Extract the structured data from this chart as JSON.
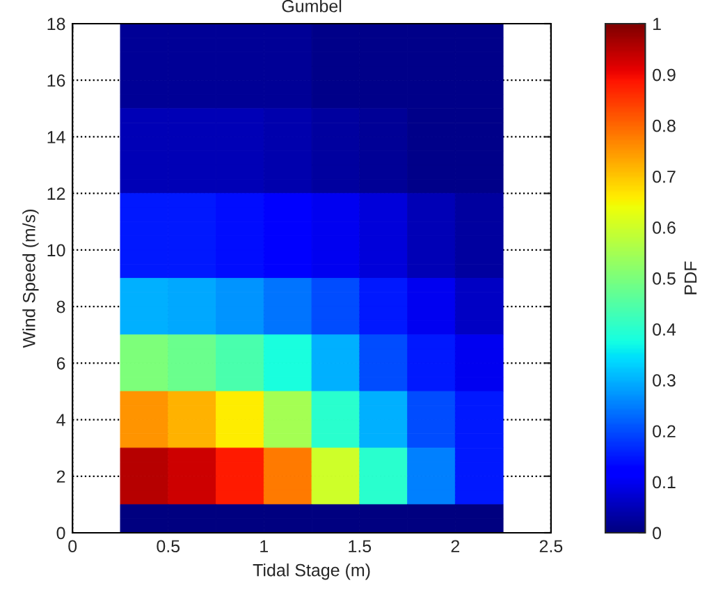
{
  "chart_data": {
    "type": "heatmap",
    "title": "Gumbel",
    "xlabel": "Tidal Stage (m)",
    "ylabel": "Wind Speed (m/s)",
    "clabel": "PDF",
    "cells": [
      [
        null,
        0.02,
        0.02,
        0.02,
        0.02,
        0.01,
        0.01,
        0.01,
        0.01,
        null
      ],
      [
        null,
        0.02,
        0.02,
        0.02,
        0.02,
        0.01,
        0.01,
        0.01,
        0.01,
        null
      ],
      [
        null,
        0.02,
        0.02,
        0.02,
        0.02,
        0.01,
        0.01,
        0.01,
        0.01,
        null
      ],
      [
        null,
        0.02,
        0.02,
        0.02,
        0.02,
        0.01,
        0.01,
        0.01,
        0.01,
        null
      ],
      [
        null,
        0.02,
        0.02,
        0.02,
        0.02,
        0.01,
        0.01,
        0.01,
        0.01,
        null
      ],
      [
        null,
        0.02,
        0.02,
        0.02,
        0.02,
        0.01,
        0.01,
        0.01,
        0.01,
        null
      ],
      [
        null,
        0.05,
        0.05,
        0.05,
        0.04,
        0.03,
        0.02,
        0.01,
        0.01,
        null
      ],
      [
        null,
        0.05,
        0.05,
        0.05,
        0.04,
        0.03,
        0.02,
        0.01,
        0.01,
        null
      ],
      [
        null,
        0.05,
        0.05,
        0.05,
        0.04,
        0.03,
        0.02,
        0.01,
        0.01,
        null
      ],
      [
        null,
        0.05,
        0.05,
        0.05,
        0.04,
        0.03,
        0.02,
        0.01,
        0.01,
        null
      ],
      [
        null,
        0.05,
        0.05,
        0.05,
        0.04,
        0.03,
        0.02,
        0.01,
        0.01,
        null
      ],
      [
        null,
        0.05,
        0.05,
        0.05,
        0.04,
        0.03,
        0.02,
        0.01,
        0.01,
        null
      ],
      [
        null,
        0.15,
        0.15,
        0.14,
        0.12,
        0.1,
        0.08,
        0.05,
        0.03,
        null
      ],
      [
        null,
        0.15,
        0.15,
        0.14,
        0.12,
        0.1,
        0.08,
        0.05,
        0.03,
        null
      ],
      [
        null,
        0.15,
        0.15,
        0.14,
        0.12,
        0.1,
        0.08,
        0.05,
        0.03,
        null
      ],
      [
        null,
        0.15,
        0.15,
        0.14,
        0.12,
        0.1,
        0.08,
        0.05,
        0.03,
        null
      ],
      [
        null,
        0.15,
        0.15,
        0.14,
        0.12,
        0.1,
        0.08,
        0.05,
        0.03,
        null
      ],
      [
        null,
        0.15,
        0.15,
        0.14,
        0.12,
        0.1,
        0.08,
        0.05,
        0.03,
        null
      ],
      [
        null,
        0.3,
        0.29,
        0.27,
        0.24,
        0.2,
        0.15,
        0.1,
        0.06,
        null
      ],
      [
        null,
        0.3,
        0.29,
        0.27,
        0.24,
        0.2,
        0.15,
        0.1,
        0.06,
        null
      ],
      [
        null,
        0.3,
        0.29,
        0.27,
        0.24,
        0.2,
        0.15,
        0.1,
        0.06,
        null
      ],
      [
        null,
        0.3,
        0.29,
        0.27,
        0.24,
        0.2,
        0.15,
        0.1,
        0.06,
        null
      ],
      [
        null,
        0.5,
        0.48,
        0.44,
        0.38,
        0.3,
        0.2,
        0.15,
        0.1,
        null
      ],
      [
        null,
        0.5,
        0.48,
        0.44,
        0.38,
        0.3,
        0.2,
        0.15,
        0.1,
        null
      ],
      [
        null,
        0.5,
        0.48,
        0.44,
        0.38,
        0.3,
        0.2,
        0.15,
        0.1,
        null
      ],
      [
        null,
        0.5,
        0.48,
        0.44,
        0.38,
        0.3,
        0.2,
        0.15,
        0.1,
        null
      ],
      [
        null,
        0.75,
        0.72,
        0.66,
        0.55,
        0.4,
        0.3,
        0.2,
        0.15,
        null
      ],
      [
        null,
        0.75,
        0.72,
        0.66,
        0.55,
        0.4,
        0.3,
        0.2,
        0.15,
        null
      ],
      [
        null,
        0.75,
        0.72,
        0.66,
        0.55,
        0.4,
        0.3,
        0.2,
        0.15,
        null
      ],
      [
        null,
        0.75,
        0.72,
        0.66,
        0.55,
        0.4,
        0.3,
        0.2,
        0.15,
        null
      ],
      [
        null,
        0.95,
        0.93,
        0.88,
        0.78,
        0.6,
        0.4,
        0.25,
        0.15,
        null
      ],
      [
        null,
        0.95,
        0.93,
        0.88,
        0.78,
        0.6,
        0.4,
        0.25,
        0.15,
        null
      ],
      [
        null,
        0.95,
        0.93,
        0.88,
        0.78,
        0.6,
        0.4,
        0.25,
        0.15,
        null
      ],
      [
        null,
        0.95,
        0.93,
        0.88,
        0.78,
        0.6,
        0.4,
        0.25,
        0.15,
        null
      ],
      [
        null,
        0,
        0,
        0,
        0,
        0,
        0,
        0,
        0,
        null
      ],
      [
        null,
        0,
        0,
        0,
        0,
        0,
        0,
        0,
        0,
        null
      ]
    ],
    "clim": [
      0,
      1
    ],
    "cticks": [
      0,
      0.1,
      0.2,
      0.3,
      0.4,
      0.5,
      0.6,
      0.7,
      0.8,
      0.9,
      1
    ],
    "xlim": [
      0,
      2.5
    ],
    "xticks": [
      0,
      0.5,
      1,
      1.5,
      2,
      2.5
    ],
    "ylim": [
      0,
      18
    ],
    "yticks": [
      0,
      2,
      4,
      6,
      8,
      10,
      12,
      14,
      16,
      18
    ],
    "grid": true
  }
}
